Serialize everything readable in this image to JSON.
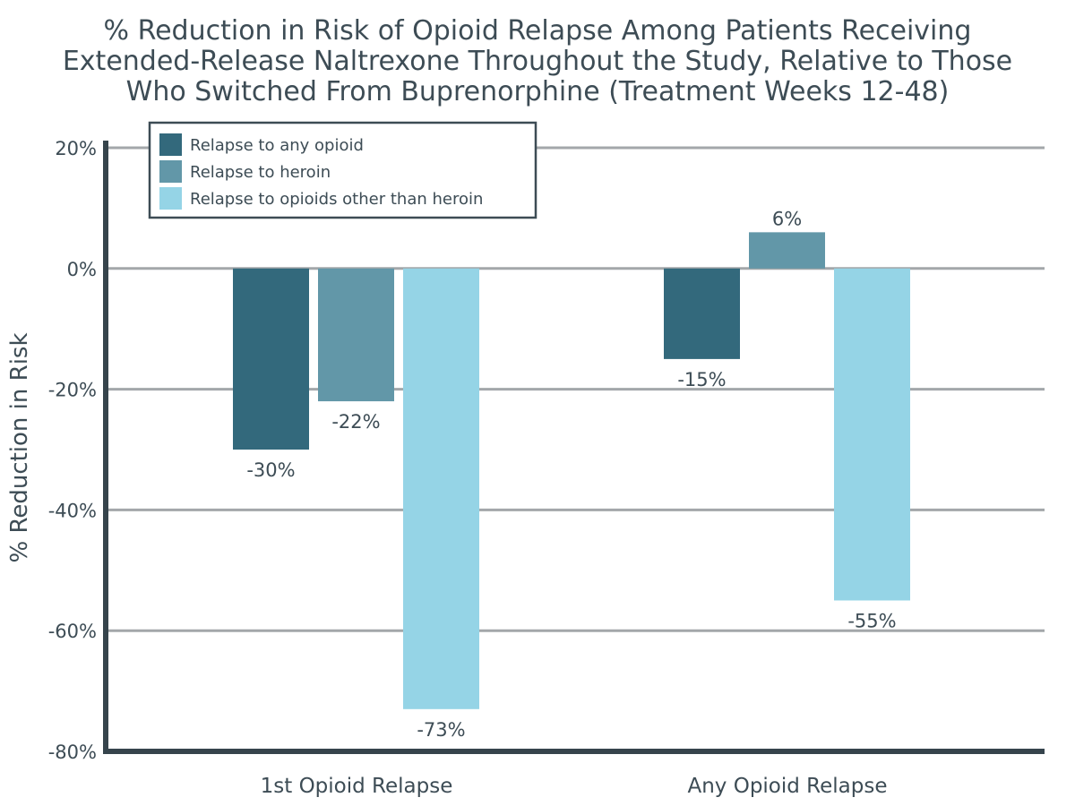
{
  "chart_data": {
    "type": "bar",
    "title_lines": [
      "% Reduction in Risk of Opioid Relapse Among Patients Receiving",
      "Extended-Release Naltrexone Throughout the Study, Relative to Those",
      "Who Switched From Buprenorphine (Treatment Weeks 12-48)"
    ],
    "xlabel": "",
    "ylabel": "% Reduction in Risk",
    "ylim": [
      -80,
      20
    ],
    "yticks": [
      20,
      0,
      -20,
      -40,
      -60,
      -80
    ],
    "ytick_labels": [
      "20%",
      "0%",
      "-20%",
      "-40%",
      "-60%",
      "-80%"
    ],
    "grid": true,
    "legend_position": "top-left",
    "categories": [
      "1st Opioid Relapse",
      "Any Opioid Relapse"
    ],
    "series": [
      {
        "name": "Relapse to any opioid",
        "color": "#33697c",
        "values": [
          -30,
          -15
        ],
        "labels": [
          "-30%",
          "-15%"
        ]
      },
      {
        "name": "Relapse to heroin",
        "color": "#6297a8",
        "values": [
          -22,
          6
        ],
        "labels": [
          "-22%",
          "6%"
        ]
      },
      {
        "name": "Relapse to opioids other than heroin",
        "color": "#95d4e6",
        "values": [
          -73,
          -55
        ],
        "labels": [
          "-73%",
          "-55%"
        ]
      }
    ]
  }
}
